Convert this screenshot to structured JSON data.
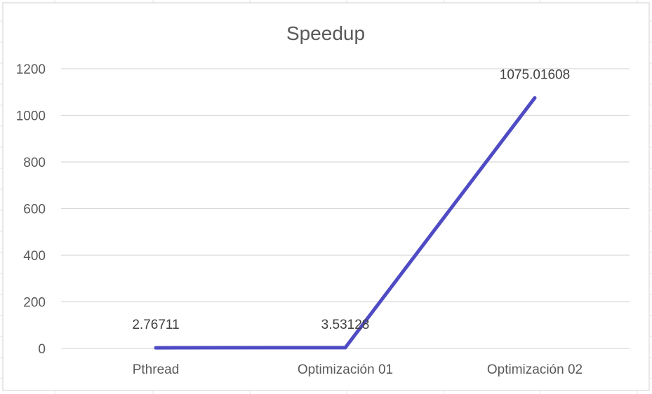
{
  "chart_data": {
    "type": "line",
    "title": "Speedup",
    "xlabel": "",
    "ylabel": "",
    "categories": [
      "Pthread",
      "Optimización 01",
      "Optimización 02"
    ],
    "series": [
      {
        "values": [
          2.76711,
          3.53128,
          1075.01608
        ],
        "color": "#4f4bc4"
      }
    ],
    "data_labels": [
      "2.76711",
      "3.53128",
      "1075.01608"
    ],
    "ylim": [
      0,
      1200
    ],
    "yticks": [
      0,
      200,
      400,
      600,
      800,
      1000,
      1200
    ],
    "grid": true,
    "legend": "none"
  }
}
